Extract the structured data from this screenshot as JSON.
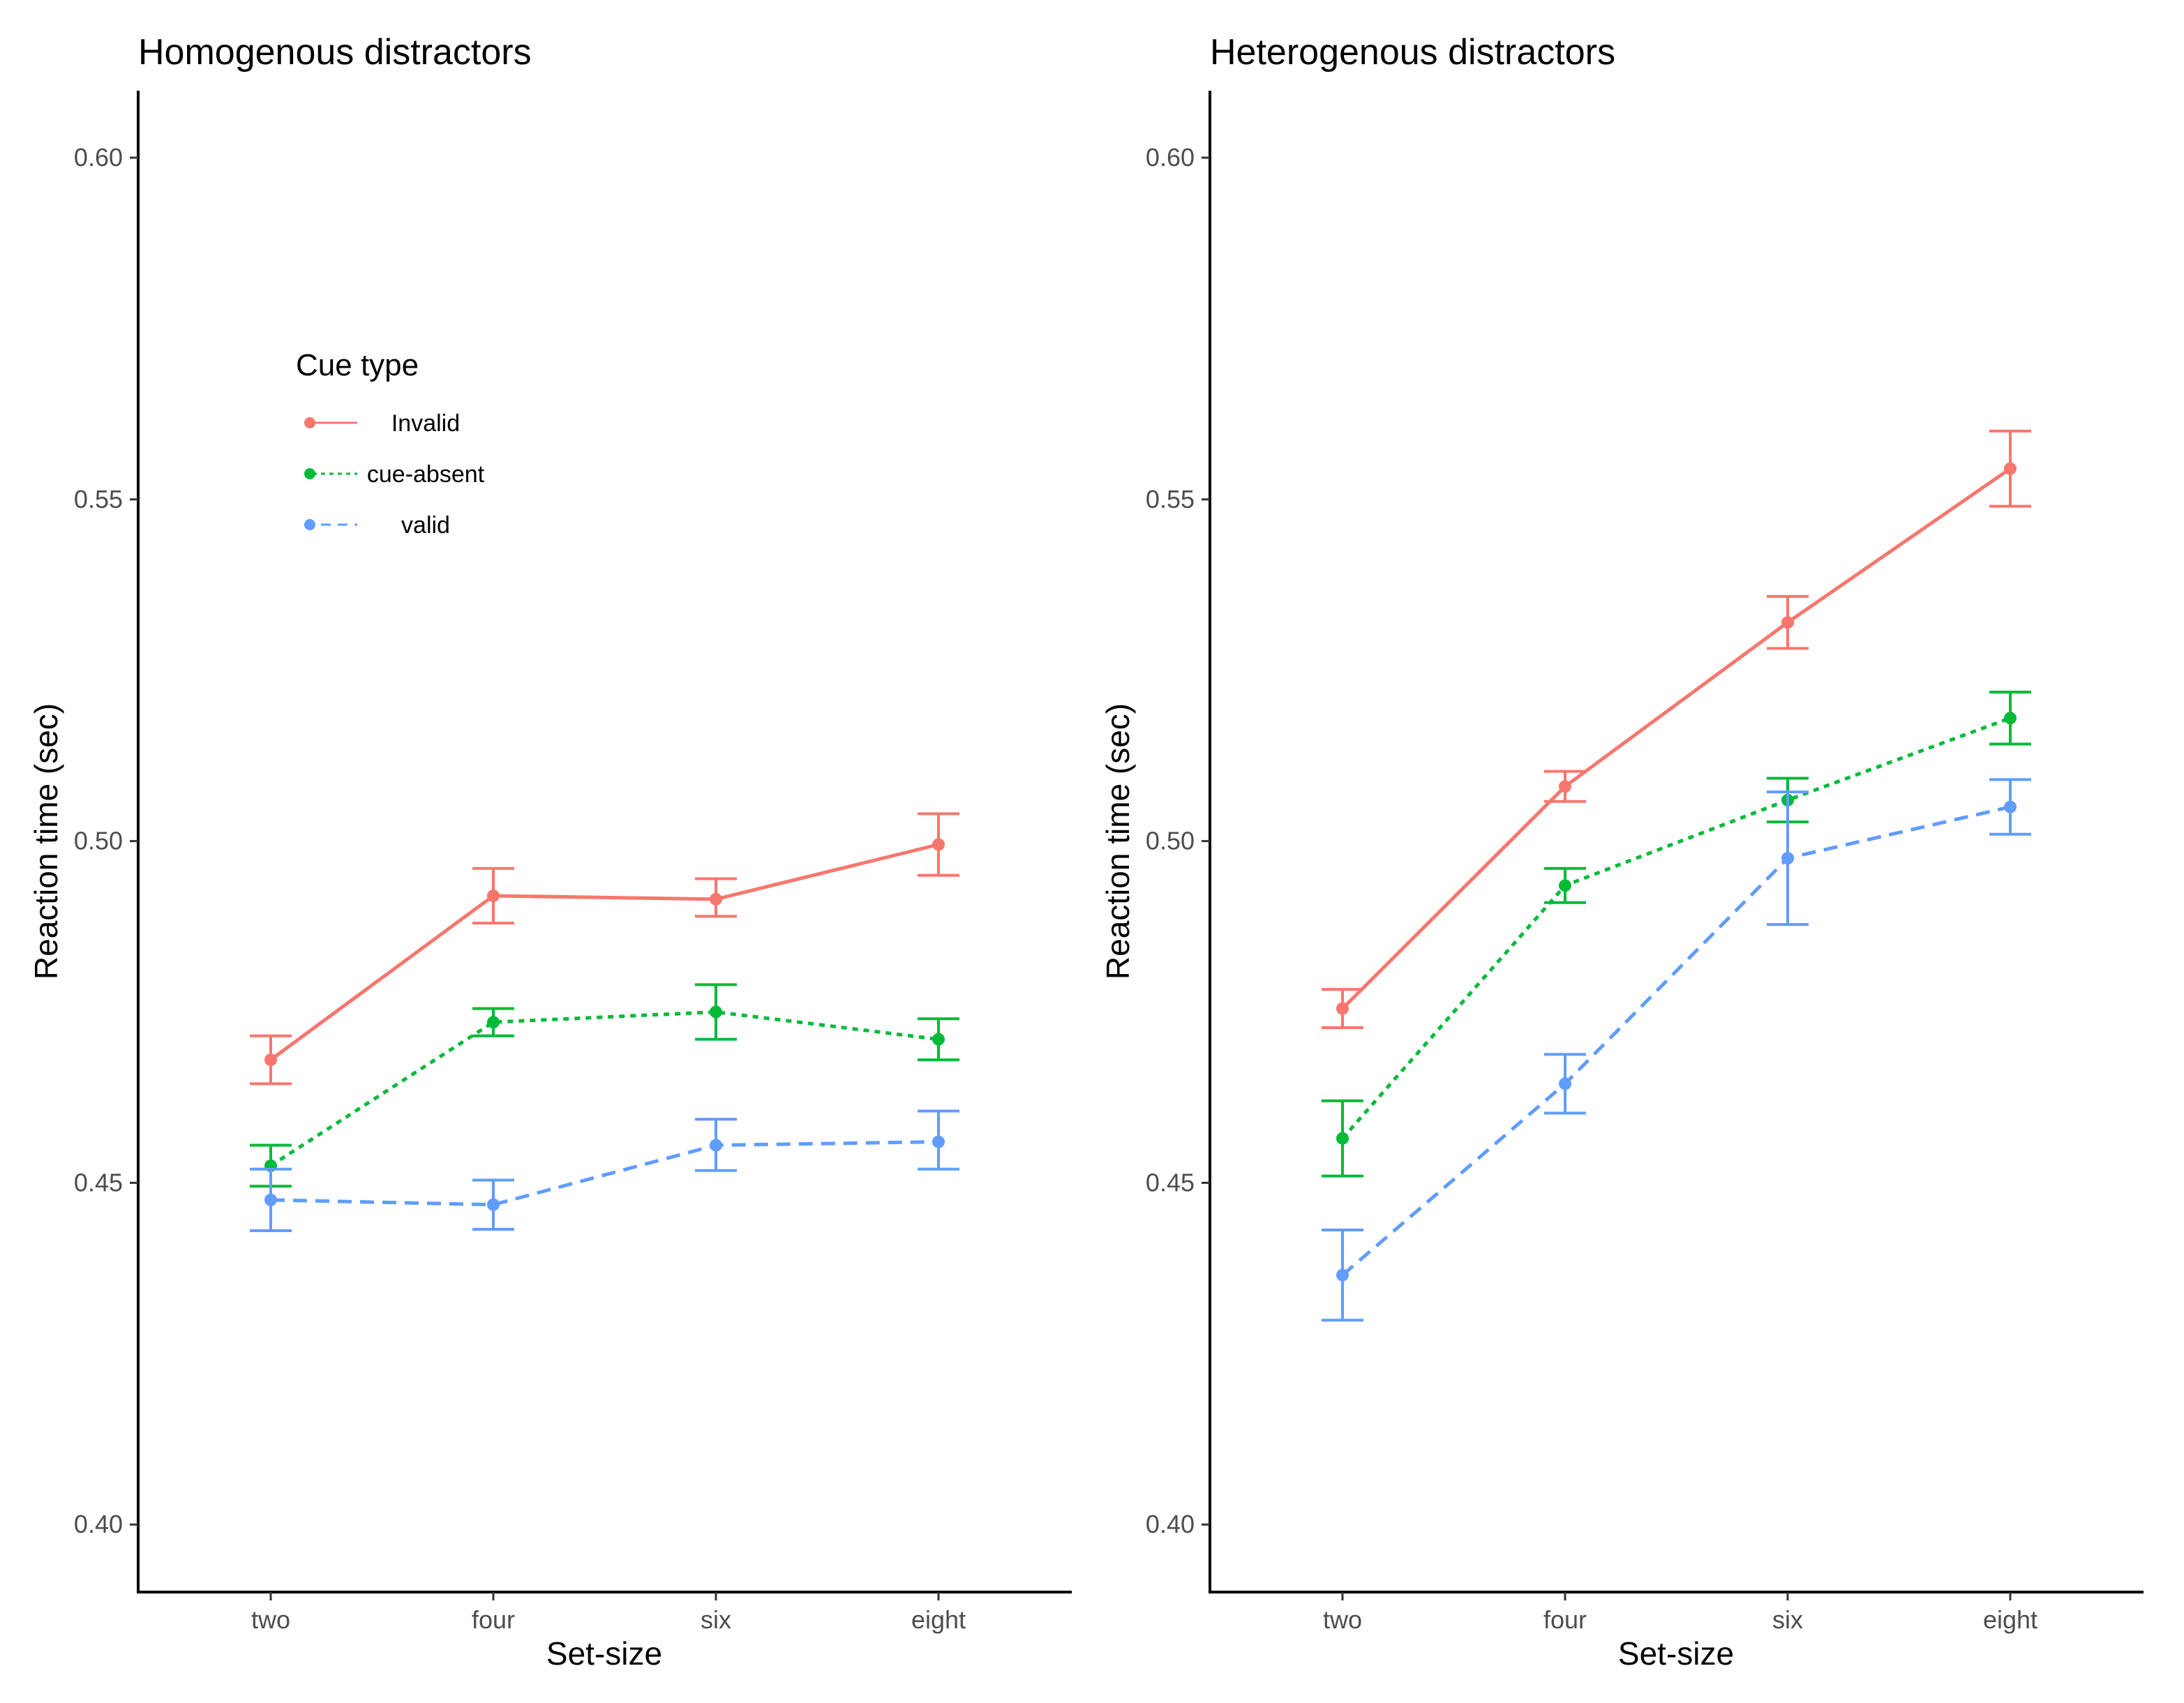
{
  "legend": {
    "title": "Cue type",
    "items": [
      {
        "label": "Invalid",
        "color": "#F8766D",
        "dash": "solid"
      },
      {
        "label": "cue-absent",
        "color": "#00BA38",
        "dash": "dotted"
      },
      {
        "label": "valid",
        "color": "#619CFF",
        "dash": "dashed"
      }
    ]
  },
  "chart_data": [
    {
      "type": "line",
      "title": "Homogenous distractors",
      "xlabel": "Set-size",
      "ylabel": "Reaction time (sec)",
      "categories": [
        "two",
        "four",
        "six",
        "eight"
      ],
      "ylim": [
        0.39,
        0.61
      ],
      "yticks": [
        "0.40",
        "0.45",
        "0.50",
        "0.55",
        "0.60"
      ],
      "series": [
        {
          "name": "Invalid",
          "values": [
            0.468,
            0.492,
            0.4915,
            0.4995
          ],
          "err_low": [
            0.4645,
            0.488,
            0.489,
            0.495
          ],
          "err_high": [
            0.4715,
            0.496,
            0.4945,
            0.504
          ]
        },
        {
          "name": "cue-absent",
          "values": [
            0.4525,
            0.4735,
            0.475,
            0.471
          ],
          "err_low": [
            0.4495,
            0.4715,
            0.471,
            0.468
          ],
          "err_high": [
            0.4555,
            0.4755,
            0.479,
            0.474
          ]
        },
        {
          "name": "valid",
          "values": [
            0.4475,
            0.4468,
            0.4555,
            0.456
          ],
          "err_low": [
            0.443,
            0.4432,
            0.4518,
            0.452
          ],
          "err_high": [
            0.452,
            0.4504,
            0.4593,
            0.4605
          ]
        }
      ]
    },
    {
      "type": "line",
      "title": "Heterogenous distractors",
      "xlabel": "Set-size",
      "ylabel": "Reaction time (sec)",
      "categories": [
        "two",
        "four",
        "six",
        "eight"
      ],
      "ylim": [
        0.39,
        0.61
      ],
      "yticks": [
        "0.40",
        "0.45",
        "0.50",
        "0.55",
        "0.60"
      ],
      "series": [
        {
          "name": "Invalid",
          "values": [
            0.4755,
            0.508,
            0.532,
            0.5545
          ],
          "err_low": [
            0.4727,
            0.5058,
            0.5282,
            0.549
          ],
          "err_high": [
            0.4783,
            0.5102,
            0.5358,
            0.56
          ]
        },
        {
          "name": "cue-absent",
          "values": [
            0.4565,
            0.4935,
            0.506,
            0.518
          ],
          "err_low": [
            0.451,
            0.491,
            0.5028,
            0.5142
          ],
          "err_high": [
            0.462,
            0.496,
            0.5092,
            0.5218
          ]
        },
        {
          "name": "valid",
          "values": [
            0.4365,
            0.4645,
            0.4975,
            0.505
          ],
          "err_low": [
            0.4299,
            0.4602,
            0.4878,
            0.501
          ],
          "err_high": [
            0.4431,
            0.4688,
            0.5072,
            0.509
          ]
        }
      ]
    }
  ]
}
